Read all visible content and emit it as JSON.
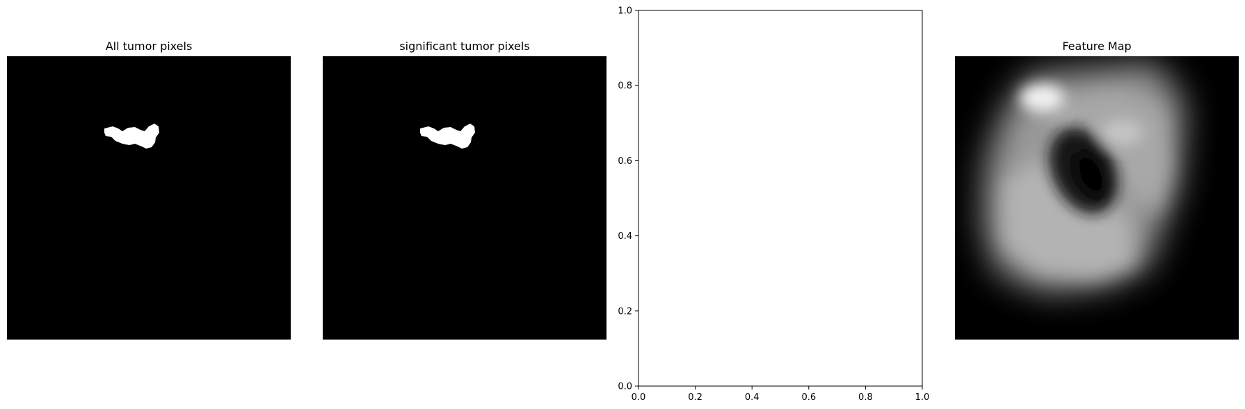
{
  "panels": [
    {
      "title": "All tumor pixels",
      "kind": "mask"
    },
    {
      "title": "significant tumor pixels",
      "kind": "mask"
    },
    {
      "title": "",
      "kind": "empty-axes"
    },
    {
      "title": "Feature Map",
      "kind": "heatmap"
    }
  ],
  "chart_data": [
    {
      "type": "heatmap",
      "title": "All tumor pixels",
      "colormap": "gray",
      "axis": "off"
    },
    {
      "type": "heatmap",
      "title": "significant tumor pixels",
      "colormap": "gray",
      "axis": "off"
    },
    {
      "type": "scatter",
      "title": "",
      "xlabel": "",
      "ylabel": "",
      "xlim": [
        0.0,
        1.0
      ],
      "ylim": [
        0.0,
        1.0
      ],
      "xticks": [
        "0.0",
        "0.2",
        "0.4",
        "0.6",
        "0.8",
        "1.0"
      ],
      "yticks": [
        "0.0",
        "0.2",
        "0.4",
        "0.6",
        "0.8",
        "1.0"
      ],
      "series": [],
      "grid": false
    },
    {
      "type": "heatmap",
      "title": "Feature Map",
      "colormap": "gray",
      "axis": "off"
    }
  ]
}
